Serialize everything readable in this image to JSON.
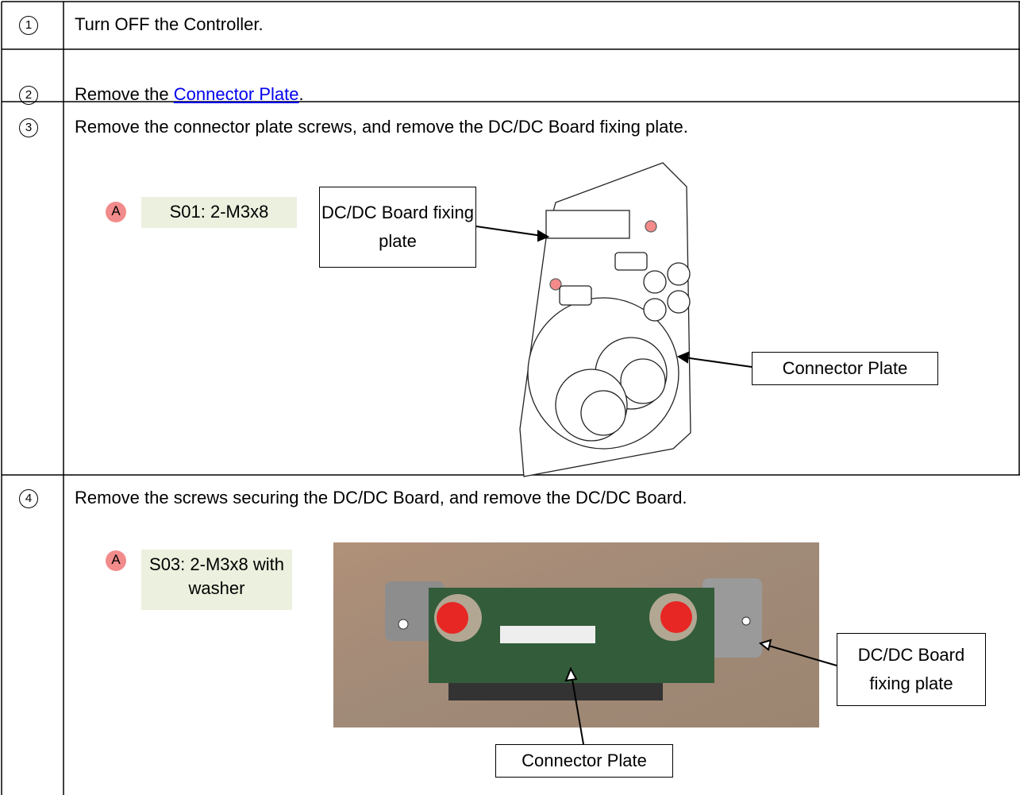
{
  "steps": [
    {
      "number": "1",
      "text": "Turn OFF the Controller."
    },
    {
      "number": "2",
      "text": "Remove the ",
      "link": "Connector Plate",
      "text_end": "."
    },
    {
      "number": "3",
      "text": "Remove the connector plate screws, and remove the DC/DC Board fixing plate.",
      "marker": "A",
      "screw": "S01: 2-M3x8",
      "callouts": [
        "DC/DC Board fixing plate",
        "Connector Plate"
      ]
    },
    {
      "number": "4",
      "text": "Remove the screws securing the DC/DC Board, and remove the DC/DC Board.",
      "marker": "A",
      "screw": "S03: 2-M3x8 with washer",
      "callouts": [
        "DC/DC Board fixing plate",
        "Connector Plate"
      ]
    }
  ]
}
